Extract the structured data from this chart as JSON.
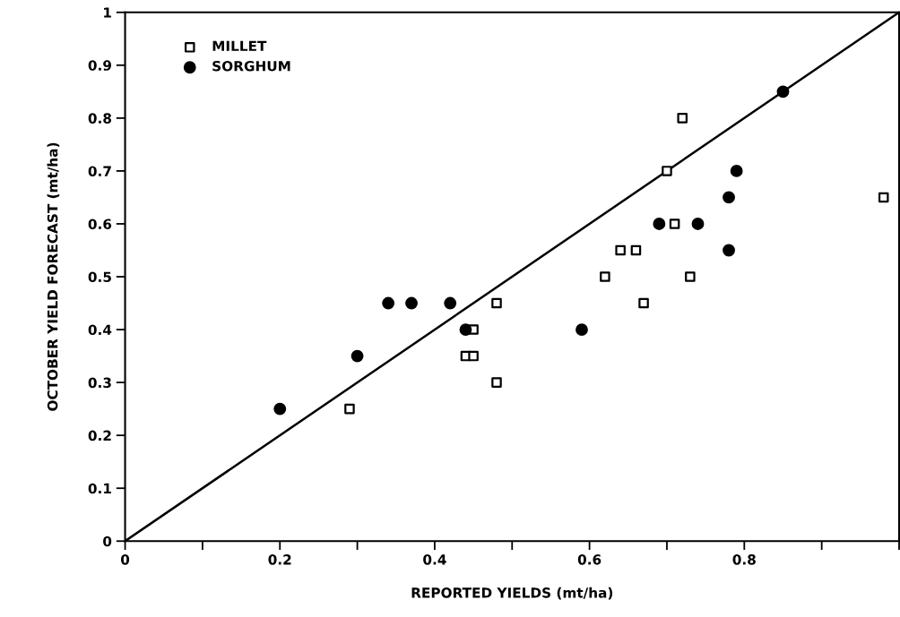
{
  "chart_data": {
    "type": "scatter",
    "xlabel": "REPORTED YIELDS (mt/ha)",
    "ylabel": "OCTOBER YIELD FORECAST (mt/ha)",
    "xlim": [
      0,
      1
    ],
    "ylim": [
      0,
      1
    ],
    "xticks": [
      0,
      {
        "value": 0.1,
        "label": null
      },
      0.2,
      {
        "value": 0.3,
        "label": null
      },
      0.4,
      {
        "value": 0.5,
        "label": null
      },
      0.6,
      {
        "value": 0.7,
        "label": null
      },
      0.8,
      {
        "value": 0.9,
        "label": null
      },
      {
        "value": 1,
        "label": null
      }
    ],
    "yticks": [
      0,
      0.1,
      0.2,
      0.3,
      0.4,
      0.5,
      0.6,
      0.7,
      0.8,
      0.9,
      1
    ],
    "grid": false,
    "legend": "top left",
    "series": [
      {
        "name": "MILLET",
        "marker": "square",
        "color": "#000000",
        "x": [
          0.29,
          0.44,
          0.45,
          0.45,
          0.48,
          0.48,
          0.62,
          0.64,
          0.66,
          0.67,
          0.7,
          0.71,
          0.72,
          0.73,
          0.98
        ],
        "values": [
          0.25,
          0.35,
          0.35,
          0.4,
          0.45,
          0.3,
          0.5,
          0.55,
          0.55,
          0.45,
          0.7,
          0.6,
          0.8,
          0.5,
          0.65
        ]
      },
      {
        "name": "SORGHUM",
        "marker": "circle",
        "color": "#000000",
        "x": [
          0.2,
          0.3,
          0.34,
          0.37,
          0.42,
          0.44,
          0.59,
          0.69,
          0.74,
          0.78,
          0.78,
          0.79,
          0.85
        ],
        "values": [
          0.25,
          0.35,
          0.45,
          0.45,
          0.45,
          0.4,
          0.4,
          0.6,
          0.6,
          0.65,
          0.55,
          0.7,
          0.85
        ]
      },
      {
        "type": "line",
        "color": "#000000",
        "line_style": "solid",
        "marker": "none",
        "x": [
          0,
          1
        ],
        "values": [
          0,
          1
        ]
      }
    ]
  }
}
